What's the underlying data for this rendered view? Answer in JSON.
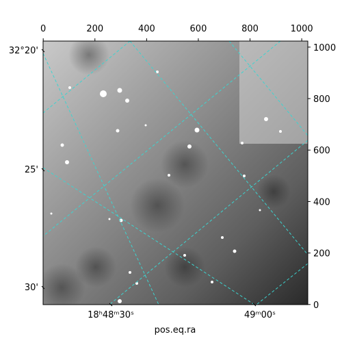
{
  "chart_data": {
    "type": "image",
    "xlabel": "pos.eq.ra",
    "xlim": [
      -0.5,
      1023.5
    ],
    "ylim": [
      -0.5,
      1023.5
    ],
    "xticks": [
      0,
      200,
      400,
      600,
      800,
      1000
    ],
    "yticks": [
      0,
      200,
      400,
      600,
      800,
      1000
    ],
    "ra_ticks": [
      "18ʰ48ᵐ30ˢ",
      "49ᵐ00ˢ"
    ],
    "dec_ticks": [
      "32°20'",
      "25'",
      "30'"
    ],
    "grid_color": "#3cd4d0"
  }
}
